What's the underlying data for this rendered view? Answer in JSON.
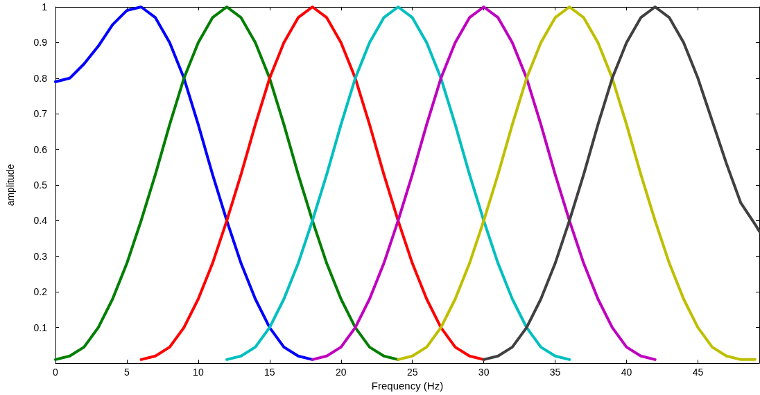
{
  "chart_data": {
    "type": "line",
    "xlabel": "Frequency (Hz)",
    "ylabel": "amplitude",
    "xlim": [
      0,
      49.3
    ],
    "xticks": [
      0,
      5,
      10,
      15,
      20,
      25,
      30,
      35,
      40,
      45
    ],
    "ylim": [
      0,
      1
    ],
    "yticks": [
      0.1,
      0.2,
      0.3,
      0.4,
      0.5,
      0.6,
      0.7,
      0.8,
      0.9,
      1
    ],
    "x": [
      0,
      1,
      2,
      3,
      4,
      5,
      6,
      7,
      8,
      9,
      10,
      11,
      12,
      13,
      14,
      15,
      16,
      17,
      18,
      19,
      20,
      21,
      22,
      23,
      24,
      25,
      26,
      27,
      28,
      29,
      30,
      31,
      32,
      33,
      34,
      35,
      36,
      37,
      38,
      39,
      40,
      41,
      42,
      43,
      44,
      45,
      46,
      47,
      48,
      49
    ],
    "marker": "none",
    "series": [
      {
        "color": "#0000ff",
        "values": [
          0.79,
          0.8,
          0.84,
          0.89,
          0.95,
          0.99,
          1,
          0.97,
          0.9,
          0.8,
          0.67,
          0.53,
          0.4,
          0.28,
          0.18,
          0.1,
          0.045,
          0.02,
          0.01,
          null,
          null,
          null,
          null,
          null,
          null,
          null,
          null,
          null,
          null,
          null,
          null,
          null,
          null,
          null,
          null,
          null,
          null,
          null,
          null,
          null,
          null,
          null,
          null,
          null,
          null,
          null,
          null,
          null,
          null,
          null
        ]
      },
      {
        "color": "#007f00",
        "values": [
          0.01,
          0.02,
          0.045,
          0.1,
          0.18,
          0.28,
          0.4,
          0.53,
          0.67,
          0.8,
          0.9,
          0.97,
          1,
          0.97,
          0.9,
          0.8,
          0.67,
          0.53,
          0.4,
          0.28,
          0.18,
          0.1,
          0.045,
          0.02,
          0.01,
          null,
          null,
          null,
          null,
          null,
          null,
          null,
          null,
          null,
          null,
          null,
          null,
          null,
          null,
          null,
          null,
          null,
          null,
          null,
          null,
          null,
          null,
          null,
          null,
          null
        ]
      },
      {
        "color": "#ff0000",
        "values": [
          null,
          null,
          null,
          null,
          null,
          null,
          0.01,
          0.02,
          0.045,
          0.1,
          0.18,
          0.28,
          0.4,
          0.53,
          0.67,
          0.8,
          0.9,
          0.97,
          1,
          0.97,
          0.9,
          0.8,
          0.67,
          0.53,
          0.4,
          0.28,
          0.18,
          0.1,
          0.045,
          0.02,
          0.01,
          null,
          null,
          null,
          null,
          null,
          null,
          null,
          null,
          null,
          null,
          null,
          null,
          null,
          null,
          null,
          null,
          null,
          null,
          null
        ]
      },
      {
        "color": "#00bfbf",
        "values": [
          null,
          null,
          null,
          null,
          null,
          null,
          null,
          null,
          null,
          null,
          null,
          null,
          0.01,
          0.02,
          0.045,
          0.1,
          0.18,
          0.28,
          0.4,
          0.53,
          0.67,
          0.8,
          0.9,
          0.97,
          1,
          0.97,
          0.9,
          0.8,
          0.67,
          0.53,
          0.4,
          0.28,
          0.18,
          0.1,
          0.045,
          0.02,
          0.01,
          null,
          null,
          null,
          null,
          null,
          null,
          null,
          null,
          null,
          null,
          null,
          null,
          null
        ]
      },
      {
        "color": "#bf00bf",
        "values": [
          null,
          null,
          null,
          null,
          null,
          null,
          null,
          null,
          null,
          null,
          null,
          null,
          null,
          null,
          null,
          null,
          null,
          null,
          0.01,
          0.02,
          0.045,
          0.1,
          0.18,
          0.28,
          0.4,
          0.53,
          0.67,
          0.8,
          0.9,
          0.97,
          1,
          0.97,
          0.9,
          0.8,
          0.67,
          0.53,
          0.4,
          0.28,
          0.18,
          0.1,
          0.045,
          0.02,
          0.01,
          null,
          null,
          null,
          null,
          null,
          null,
          null
        ]
      },
      {
        "color": "#bfbf00",
        "values": [
          null,
          null,
          null,
          null,
          null,
          null,
          null,
          null,
          null,
          null,
          null,
          null,
          null,
          null,
          null,
          null,
          null,
          null,
          null,
          null,
          null,
          null,
          null,
          null,
          0.01,
          0.02,
          0.045,
          0.1,
          0.18,
          0.28,
          0.4,
          0.53,
          0.67,
          0.8,
          0.9,
          0.97,
          1,
          0.97,
          0.9,
          0.8,
          0.67,
          0.53,
          0.4,
          0.28,
          0.18,
          0.1,
          0.045,
          0.02,
          0.01,
          0.01
        ]
      },
      {
        "color": "#404040",
        "x": [
          30,
          31,
          32,
          33,
          34,
          35,
          36,
          37,
          38,
          39,
          40,
          41,
          42,
          43,
          44,
          45,
          46,
          47,
          48,
          49,
          49.3
        ],
        "values": [
          0.01,
          0.02,
          0.045,
          0.1,
          0.18,
          0.28,
          0.4,
          0.53,
          0.67,
          0.8,
          0.9,
          0.97,
          1,
          0.97,
          0.9,
          0.8,
          0.68,
          0.56,
          0.45,
          0.39,
          0.37
        ]
      }
    ]
  }
}
